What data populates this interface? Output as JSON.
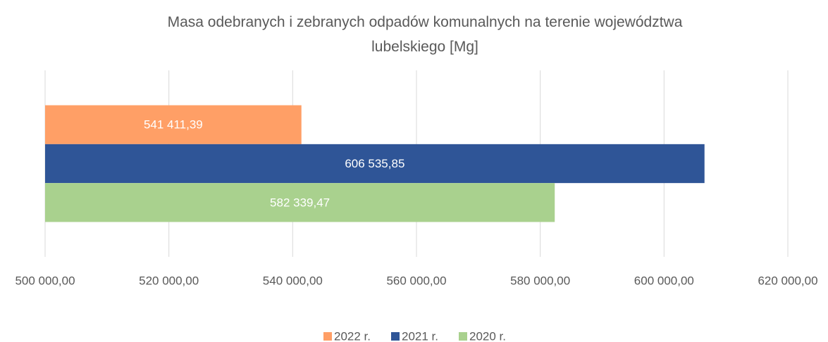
{
  "chart_data": {
    "type": "hbar",
    "title": "Masa odebranych i zebranych odpadów komunalnych na terenie województwa lubelskiego [Mg]",
    "categories": [
      null
    ],
    "series": [
      {
        "name": "2022 r.",
        "color": "#ff9f66",
        "values": [
          541411.39
        ],
        "value_labels": [
          "541 411,39"
        ]
      },
      {
        "name": "2021 r.",
        "color": "#2f5597",
        "values": [
          606535.85
        ],
        "value_labels": [
          "606 535,85"
        ]
      },
      {
        "name": "2020 r.",
        "color": "#a9d18e",
        "values": [
          582339.47
        ],
        "value_labels": [
          "582 339,47"
        ]
      }
    ],
    "xlim": [
      500000,
      620000
    ],
    "xticks": [
      {
        "value": 500000,
        "label": "500 000,00"
      },
      {
        "value": 520000,
        "label": "520 000,00"
      },
      {
        "value": 540000,
        "label": "540 000,00"
      },
      {
        "value": 560000,
        "label": "560 000,00"
      },
      {
        "value": 580000,
        "label": "580 000,00"
      },
      {
        "value": 600000,
        "label": "600 000,00"
      },
      {
        "value": 620000,
        "label": "620 000,00"
      }
    ],
    "grid": true,
    "legend": "bottom"
  }
}
